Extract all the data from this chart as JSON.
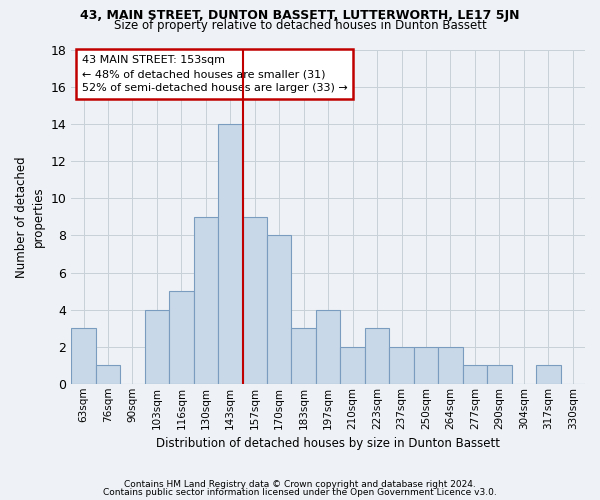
{
  "title": "43, MAIN STREET, DUNTON BASSETT, LUTTERWORTH, LE17 5JN",
  "subtitle": "Size of property relative to detached houses in Dunton Bassett",
  "xlabel": "Distribution of detached houses by size in Dunton Bassett",
  "ylabel": "Number of detached\nproperties",
  "bin_labels": [
    "63sqm",
    "76sqm",
    "90sqm",
    "103sqm",
    "116sqm",
    "130sqm",
    "143sqm",
    "157sqm",
    "170sqm",
    "183sqm",
    "197sqm",
    "210sqm",
    "223sqm",
    "237sqm",
    "250sqm",
    "264sqm",
    "277sqm",
    "290sqm",
    "304sqm",
    "317sqm",
    "330sqm"
  ],
  "bar_heights": [
    3,
    1,
    0,
    4,
    5,
    9,
    14,
    9,
    8,
    3,
    4,
    2,
    3,
    2,
    2,
    2,
    1,
    1,
    0,
    1,
    0
  ],
  "bar_color": "#c8d8e8",
  "bar_edge_color": "#7a9cbf",
  "annotation_line1": "43 MAIN STREET: 153sqm",
  "annotation_line2": "← 48% of detached houses are smaller (31)",
  "annotation_line3": "52% of semi-detached houses are larger (33) →",
  "vline_color": "#c00000",
  "annotation_box_edge_color": "#c00000",
  "ylim": [
    0,
    18
  ],
  "yticks": [
    0,
    2,
    4,
    6,
    8,
    10,
    12,
    14,
    16,
    18
  ],
  "grid_color": "#c8d0d8",
  "background_color": "#eef2f6",
  "footer1": "Contains HM Land Registry data © Crown copyright and database right 2024.",
  "footer2": "Contains public sector information licensed under the Open Government Licence v3.0."
}
